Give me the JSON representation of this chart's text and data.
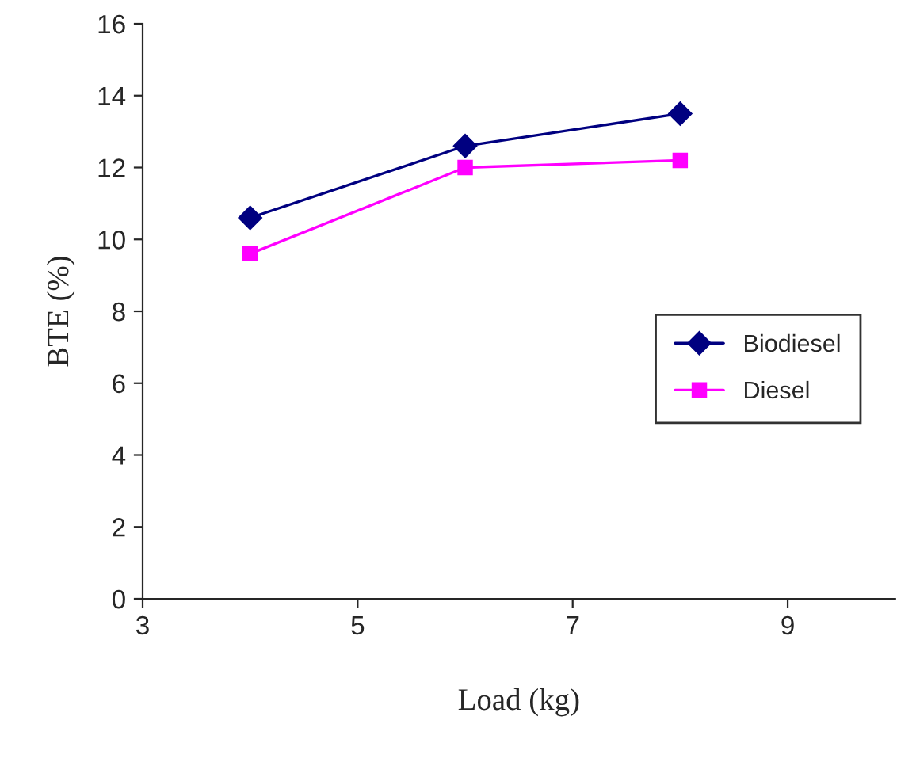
{
  "chart_data": {
    "type": "line",
    "xlabel": "Load (kg)",
    "ylabel": "BTE (%)",
    "x": [
      4,
      6,
      8
    ],
    "series": [
      {
        "name": "Biodiesel",
        "color": "#000080",
        "marker": "diamond",
        "values": [
          10.6,
          12.6,
          13.5
        ]
      },
      {
        "name": "Diesel",
        "color": "#ff00ff",
        "marker": "square",
        "values": [
          9.6,
          12.0,
          12.2
        ]
      }
    ],
    "xlim": [
      3,
      10
    ],
    "xticks": [
      3,
      5,
      7,
      9
    ],
    "ylim": [
      0,
      16
    ],
    "yticks": [
      0,
      2,
      4,
      6,
      8,
      10,
      12,
      14,
      16
    ],
    "grid": false,
    "legend": "right",
    "line_style": "solid"
  }
}
